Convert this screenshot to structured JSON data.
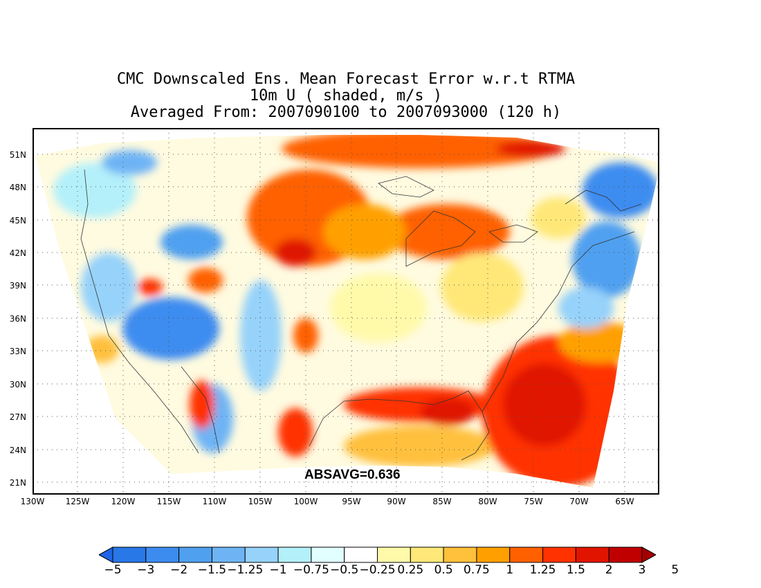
{
  "title": {
    "line1": "CMC Downscaled Ens. Mean Forecast Error w.r.t RTMA",
    "line2": "10m U ( shaded, m/s )",
    "line3": "Averaged From: 2007090100 to 2007093000 (120 h)"
  },
  "annotation": "ABSAVG=0.636",
  "lat_labels": [
    "51N",
    "48N",
    "45N",
    "42N",
    "39N",
    "36N",
    "33N",
    "30N",
    "27N",
    "24N",
    "21N"
  ],
  "lon_labels": [
    "130W",
    "125W",
    "120W",
    "115W",
    "110W",
    "105W",
    "100W",
    "95W",
    "90W",
    "85W",
    "80W",
    "75W",
    "70W",
    "65W"
  ],
  "colorbar": {
    "labels": [
      "−5",
      "−3",
      "−2",
      "−1.5",
      "−1.25",
      "−1",
      "−0.75",
      "−0.5",
      "−0.25",
      "0.25",
      "0.5",
      "0.75",
      "1",
      "1.25",
      "1.5",
      "2",
      "3",
      "5"
    ],
    "colors": [
      "#1e64e6",
      "#2878e8",
      "#3c8cf0",
      "#50a0f0",
      "#6eb4f5",
      "#96d2fa",
      "#b4f0fa",
      "#e1ffff",
      "#ffffff",
      "#fffaaa",
      "#ffe878",
      "#ffc03c",
      "#ffa000",
      "#ff6000",
      "#ff3200",
      "#e11400",
      "#c00000",
      "#a50000"
    ]
  },
  "regions": [
    {
      "name": "northern-plains-positive",
      "level": 1.25
    },
    {
      "name": "great-lakes-positive",
      "level": 1.25
    },
    {
      "name": "gulf-of-mexico-positive",
      "level": 1.5
    },
    {
      "name": "western-atlantic-positive",
      "level": 2
    },
    {
      "name": "new-england-offshore-negative",
      "level": -1.25
    },
    {
      "name": "great-basin-negative",
      "level": -1.25
    },
    {
      "name": "gulf-of-california-positive",
      "level": 1.5
    },
    {
      "name": "canadian-border-positive",
      "level": 1.25
    }
  ]
}
